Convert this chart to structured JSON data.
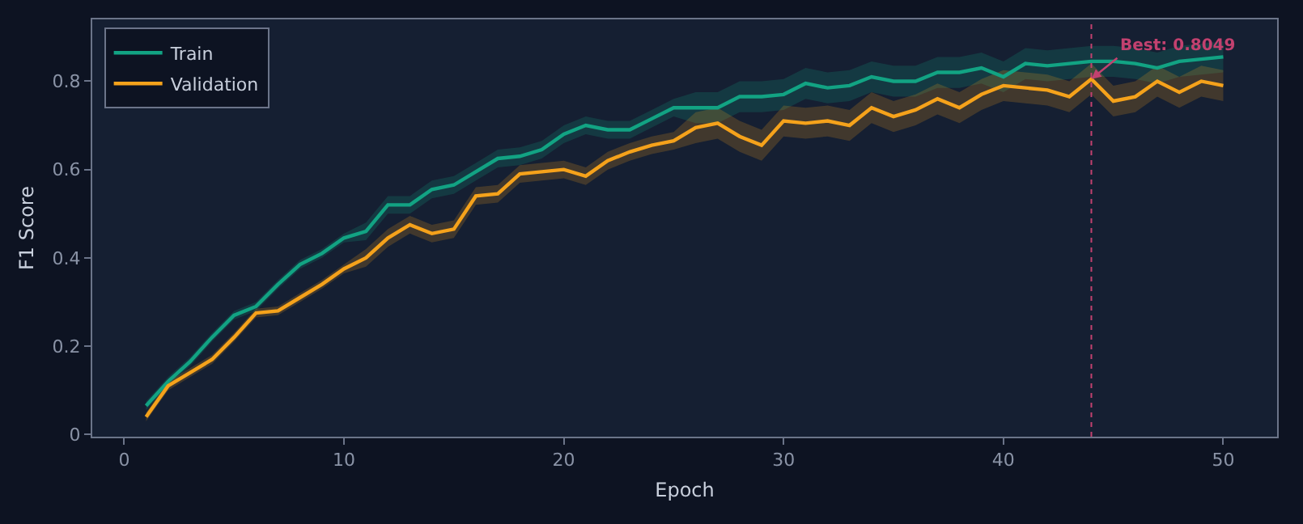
{
  "chart_data": {
    "type": "line",
    "xlabel": "Epoch",
    "ylabel": "F1 Score",
    "x": [
      1,
      2,
      3,
      4,
      5,
      6,
      7,
      8,
      9,
      10,
      11,
      12,
      13,
      14,
      15,
      16,
      17,
      18,
      19,
      20,
      21,
      22,
      23,
      24,
      25,
      26,
      27,
      28,
      29,
      30,
      31,
      32,
      33,
      34,
      35,
      36,
      37,
      38,
      39,
      40,
      41,
      42,
      43,
      44,
      45,
      46,
      47,
      48,
      49,
      50
    ],
    "series": [
      {
        "name": "Train",
        "color": "#12a383",
        "values": [
          0.065,
          0.12,
          0.165,
          0.22,
          0.27,
          0.29,
          0.34,
          0.385,
          0.41,
          0.445,
          0.46,
          0.52,
          0.52,
          0.555,
          0.565,
          0.595,
          0.625,
          0.63,
          0.645,
          0.68,
          0.7,
          0.69,
          0.69,
          0.715,
          0.74,
          0.74,
          0.74,
          0.765,
          0.765,
          0.77,
          0.795,
          0.785,
          0.79,
          0.81,
          0.8,
          0.8,
          0.82,
          0.82,
          0.83,
          0.81,
          0.84,
          0.835,
          0.84,
          0.845,
          0.845,
          0.84,
          0.83,
          0.845,
          0.85,
          0.855
        ],
        "lower": [
          0.055,
          0.11,
          0.155,
          0.21,
          0.26,
          0.28,
          0.33,
          0.375,
          0.4,
          0.435,
          0.44,
          0.5,
          0.5,
          0.535,
          0.545,
          0.575,
          0.605,
          0.61,
          0.625,
          0.66,
          0.68,
          0.67,
          0.67,
          0.695,
          0.72,
          0.705,
          0.705,
          0.73,
          0.73,
          0.735,
          0.76,
          0.75,
          0.755,
          0.775,
          0.765,
          0.765,
          0.785,
          0.785,
          0.795,
          0.775,
          0.805,
          0.8,
          0.805,
          0.81,
          0.81,
          0.805,
          0.795,
          0.81,
          0.815,
          0.82
        ],
        "upper": [
          0.075,
          0.13,
          0.175,
          0.23,
          0.28,
          0.3,
          0.35,
          0.395,
          0.42,
          0.455,
          0.48,
          0.54,
          0.54,
          0.575,
          0.585,
          0.615,
          0.645,
          0.65,
          0.665,
          0.7,
          0.72,
          0.71,
          0.71,
          0.735,
          0.76,
          0.775,
          0.775,
          0.8,
          0.8,
          0.805,
          0.83,
          0.82,
          0.825,
          0.845,
          0.835,
          0.835,
          0.855,
          0.855,
          0.865,
          0.845,
          0.875,
          0.87,
          0.875,
          0.88,
          0.88,
          0.875,
          0.865,
          0.88,
          0.885,
          0.89
        ]
      },
      {
        "name": "Validation",
        "color": "#f5a21b",
        "values": [
          0.04,
          0.11,
          0.14,
          0.17,
          0.22,
          0.275,
          0.28,
          0.31,
          0.34,
          0.375,
          0.4,
          0.445,
          0.475,
          0.455,
          0.465,
          0.54,
          0.545,
          0.59,
          0.595,
          0.6,
          0.585,
          0.62,
          0.64,
          0.655,
          0.665,
          0.695,
          0.705,
          0.675,
          0.655,
          0.71,
          0.705,
          0.71,
          0.7,
          0.74,
          0.72,
          0.735,
          0.76,
          0.74,
          0.77,
          0.79,
          0.785,
          0.78,
          0.765,
          0.8049,
          0.755,
          0.765,
          0.8,
          0.775,
          0.8,
          0.79
        ],
        "lower": [
          0.03,
          0.1,
          0.13,
          0.16,
          0.21,
          0.265,
          0.27,
          0.3,
          0.33,
          0.365,
          0.38,
          0.425,
          0.455,
          0.435,
          0.445,
          0.52,
          0.525,
          0.57,
          0.575,
          0.58,
          0.565,
          0.6,
          0.62,
          0.635,
          0.645,
          0.66,
          0.67,
          0.64,
          0.62,
          0.675,
          0.67,
          0.675,
          0.665,
          0.705,
          0.685,
          0.7,
          0.725,
          0.705,
          0.735,
          0.755,
          0.75,
          0.745,
          0.73,
          0.77,
          0.72,
          0.73,
          0.765,
          0.74,
          0.765,
          0.755
        ],
        "upper": [
          0.05,
          0.12,
          0.15,
          0.18,
          0.23,
          0.285,
          0.29,
          0.32,
          0.35,
          0.385,
          0.42,
          0.465,
          0.495,
          0.475,
          0.485,
          0.56,
          0.565,
          0.61,
          0.615,
          0.62,
          0.605,
          0.64,
          0.66,
          0.675,
          0.685,
          0.73,
          0.74,
          0.71,
          0.69,
          0.745,
          0.74,
          0.745,
          0.735,
          0.775,
          0.755,
          0.77,
          0.795,
          0.775,
          0.805,
          0.825,
          0.82,
          0.815,
          0.8,
          0.84,
          0.79,
          0.8,
          0.835,
          0.81,
          0.835,
          0.825
        ]
      }
    ],
    "xlim": [
      -1.45,
      52.45
    ],
    "xticks": [
      0,
      10,
      20,
      30,
      40,
      50
    ],
    "ylim": [
      -0.005,
      0.94
    ],
    "yticks": [
      0.0,
      {
        "value": 0.2,
        "label": "0.2"
      },
      {
        "value": 0.4,
        "label": "0.4"
      },
      {
        "value": 0.6,
        "label": "0.6"
      },
      {
        "value": 0.8,
        "label": "0.8"
      }
    ],
    "ref_lines": [
      {
        "axis": "x",
        "value": 44,
        "color": "#c2416f",
        "line_style": "dotted"
      }
    ],
    "annotations": [
      {
        "text": "Best: 0.8049",
        "x": 44,
        "y": 0.8049
      }
    ],
    "legend": "top left",
    "marker": "none",
    "line_style": "solid",
    "grid": false
  }
}
